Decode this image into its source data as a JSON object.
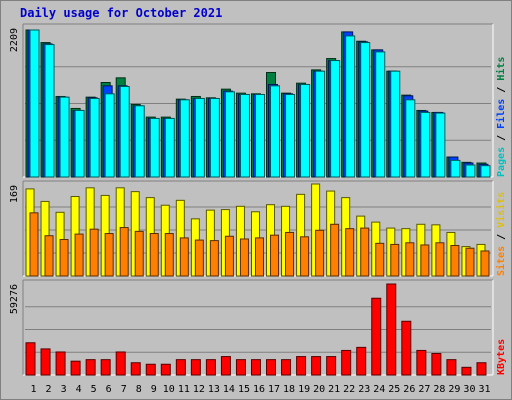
{
  "chart_data": {
    "type": "bar",
    "title": "Daily usage for October 2021",
    "categories": [
      "1",
      "2",
      "3",
      "4",
      "5",
      "6",
      "7",
      "8",
      "9",
      "10",
      "11",
      "12",
      "13",
      "14",
      "15",
      "16",
      "17",
      "18",
      "19",
      "20",
      "21",
      "22",
      "23",
      "24",
      "25",
      "26",
      "27",
      "28",
      "29",
      "30",
      "31"
    ],
    "weekend_days": [
      "2",
      "3",
      "9",
      "10",
      "16",
      "17",
      "23",
      "24",
      "30",
      "31"
    ],
    "panels": [
      {
        "id": "pages-files-hits",
        "ymax": 2209,
        "y_tick_label": "2209",
        "right_label": [
          "Pages",
          "Files",
          "Hits"
        ],
        "series": [
          {
            "name": "Hits",
            "color": "#008040",
            "values": [
              2209,
              2020,
              1210,
              1030,
              1200,
              1420,
              1490,
              1090,
              900,
              900,
              1170,
              1210,
              1190,
              1320,
              1260,
              1250,
              1570,
              1260,
              1410,
              1610,
              1780,
              2180,
              2040,
              1910,
              1590,
              1230,
              1000,
              970,
              300,
              220,
              210
            ]
          },
          {
            "name": "Files",
            "color": "#0040ff",
            "values": [
              2209,
              2000,
              1200,
              1000,
              1190,
              1370,
              1370,
              1070,
              880,
              880,
              1160,
              1180,
              1180,
              1290,
              1240,
              1240,
              1390,
              1250,
              1390,
              1590,
              1750,
              2180,
              2030,
              1910,
              1590,
              1220,
              990,
              970,
              300,
              210,
              190
            ]
          },
          {
            "name": "Pages",
            "color": "#00ffff",
            "values": [
              2209,
              1990,
              1200,
              1000,
              1180,
              1250,
              1360,
              1070,
              880,
              880,
              1160,
              1180,
              1180,
              1280,
              1240,
              1240,
              1370,
              1240,
              1390,
              1590,
              1750,
              2120,
              2020,
              1880,
              1590,
              1160,
              970,
              960,
              250,
              180,
              170
            ]
          }
        ]
      },
      {
        "id": "visits-sites",
        "ymax": 169,
        "y_tick_label": "169",
        "right_label": [
          "Sites",
          "Visits"
        ],
        "series": [
          {
            "name": "Visits",
            "color": "#ffff00",
            "values": [
              160,
              137,
              117,
              146,
              162,
              148,
              162,
              155,
              144,
              130,
              139,
              105,
              121,
              122,
              128,
              118,
              131,
              128,
              150,
              169,
              156,
              144,
              110,
              99,
              88,
              87,
              95,
              94,
              80,
              54,
              58
            ]
          },
          {
            "name": "Sites",
            "color": "#ff8000",
            "values": [
              116,
              74,
              67,
              77,
              86,
              78,
              89,
              82,
              78,
              78,
              70,
              66,
              65,
              73,
              68,
              70,
              75,
              80,
              72,
              84,
              95,
              87,
              88,
              60,
              58,
              61,
              57,
              61,
              56,
              51,
              46
            ]
          }
        ]
      },
      {
        "id": "kbytes",
        "ymax": 59276,
        "y_tick_label": "59276",
        "right_label": [
          "KBytes"
        ],
        "series": [
          {
            "name": "KBytes",
            "color": "#ff0000",
            "values": [
              21000,
              17000,
              15000,
              9000,
              10000,
              10000,
              15000,
              8000,
              7000,
              7000,
              10000,
              10000,
              10000,
              12000,
              10000,
              10000,
              10000,
              10000,
              12000,
              12000,
              12000,
              16000,
              18000,
              50000,
              59276,
              35000,
              16000,
              14000,
              10000,
              5000,
              8000
            ]
          }
        ]
      }
    ],
    "weekday_label_color": "#000000",
    "weekend_label_color": "#00805c"
  }
}
